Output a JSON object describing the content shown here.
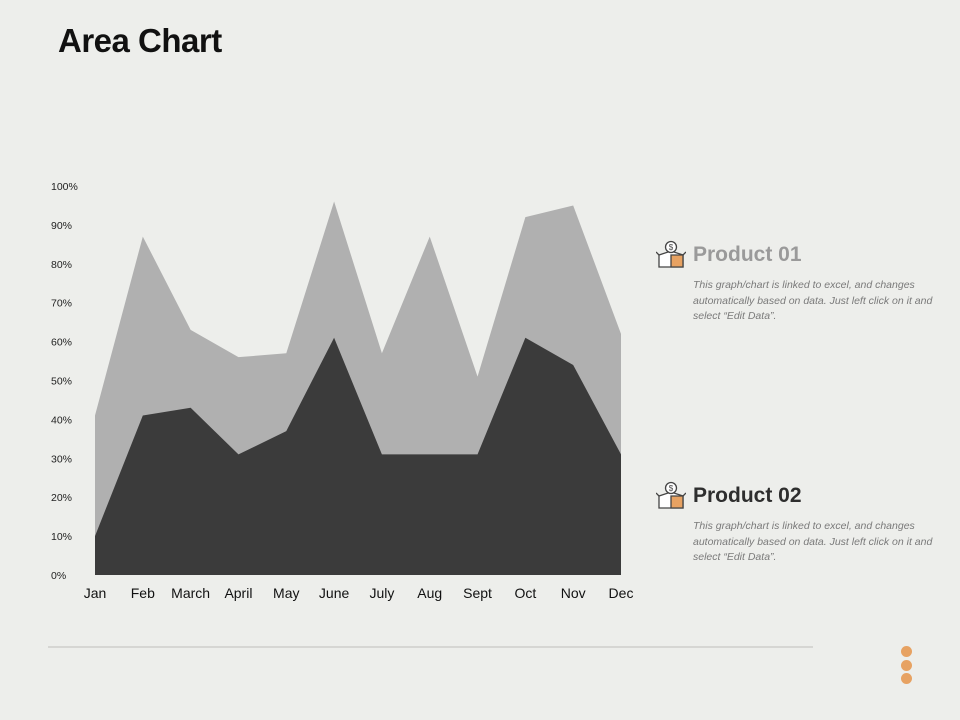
{
  "title": "Area Chart",
  "colors": {
    "product01": "#b0b0b0",
    "product02": "#3b3b3b",
    "accent": "#e7a262"
  },
  "legend": [
    {
      "name": "Product 01",
      "icon": "money-box-icon",
      "description": "This graph/chart is linked to excel, and changes automatically based on data. Just left click on it and select “Edit Data”."
    },
    {
      "name": "Product 02",
      "icon": "money-box-icon",
      "description": "This graph/chart is linked to excel, and changes automatically based on data. Just left click on it and select “Edit Data”."
    }
  ],
  "chart_data": {
    "type": "area",
    "stacked": false,
    "categories": [
      "Jan",
      "Feb",
      "March",
      "April",
      "May",
      "June",
      "July",
      "Aug",
      "Sept",
      "Oct",
      "Nov",
      "Dec"
    ],
    "series": [
      {
        "name": "Product 01",
        "values": [
          41,
          87,
          63,
          56,
          57,
          96,
          57,
          87,
          51,
          92,
          95,
          62
        ]
      },
      {
        "name": "Product 02",
        "values": [
          10,
          41,
          43,
          31,
          37,
          61,
          31,
          31,
          31,
          61,
          54,
          31
        ]
      }
    ],
    "yticks": [
      "0%",
      "10%",
      "20%",
      "30%",
      "40%",
      "50%",
      "60%",
      "70%",
      "80%",
      "90%",
      "100%"
    ],
    "ylim": [
      0,
      100
    ],
    "grid": false,
    "legend_position": "right"
  }
}
